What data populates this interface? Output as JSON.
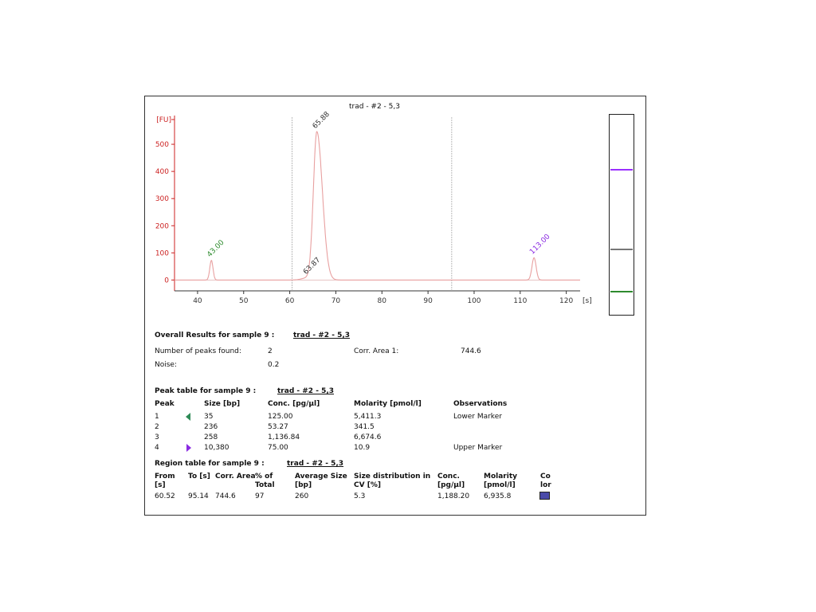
{
  "chart_data": {
    "type": "line",
    "title": "trad - #2 - 5,3",
    "ylabel": "[FU]",
    "xlabel": "[s]",
    "xlim": [
      35,
      123
    ],
    "ylim": [
      -40,
      600
    ],
    "xticks": [
      40,
      50,
      60,
      70,
      80,
      90,
      100,
      110,
      120
    ],
    "yticks": [
      0,
      100,
      200,
      300,
      400,
      500
    ],
    "region_lines_x": [
      60.52,
      95.14
    ],
    "peaks": [
      {
        "x": 43.0,
        "height": 72,
        "width": 0.35,
        "label": "43.00",
        "label_color": "#2e8b2e"
      },
      {
        "x": 63.87,
        "height": 8,
        "width": 1.2,
        "label": "63.87",
        "label_color": "#333333"
      },
      {
        "x": 65.88,
        "height": 545,
        "width": 0.75,
        "label": "65.88",
        "label_color": "#333333"
      },
      {
        "x": 113.0,
        "height": 82,
        "width": 0.45,
        "label": "113.00",
        "label_color": "#8a2be2"
      }
    ],
    "trace_color": "#e8a0a0",
    "axis_color": "#cc2222",
    "grid": false
  },
  "gel": {
    "bands": [
      {
        "position": 0.27,
        "color": "#9b30ff"
      },
      {
        "position": 0.67,
        "color": "#777777"
      },
      {
        "position": 0.88,
        "color": "#2e8b2e"
      }
    ]
  },
  "overall": {
    "heading": "Overall Results for sample 9  :",
    "sample_name": "trad - #2 - 5,3",
    "peaks_found_label": "Number of peaks found:",
    "peaks_found_value": "2",
    "corr_area_label": "Corr. Area 1:",
    "corr_area_value": "744.6",
    "noise_label": "Noise:",
    "noise_value": "0.2"
  },
  "peak_table": {
    "heading": "Peak table for sample 9  :",
    "sample_name": "trad - #2 - 5,3",
    "headers": [
      "Peak",
      "Size [bp]",
      "Conc. [pg/µl]",
      "Molarity [pmol/l]",
      "Observations"
    ],
    "rows": [
      {
        "peak": "1",
        "size": "35",
        "conc": "125.00",
        "molarity": "5,411.3",
        "obs": "Lower Marker",
        "marker": "lower"
      },
      {
        "peak": "2",
        "size": "236",
        "conc": "53.27",
        "molarity": "341.5",
        "obs": "",
        "marker": ""
      },
      {
        "peak": "3",
        "size": "258",
        "conc": "1,136.84",
        "molarity": "6,674.6",
        "obs": "",
        "marker": ""
      },
      {
        "peak": "4",
        "size": "10,380",
        "conc": "75.00",
        "molarity": "10.9",
        "obs": "Upper Marker",
        "marker": "upper"
      }
    ]
  },
  "region_table": {
    "heading": "Region table for sample 9  :",
    "sample_name": "trad - #2 - 5,3",
    "headers": {
      "from_1": "From",
      "from_2": "[s]",
      "to": "To [s]",
      "area": "Corr. Area",
      "pct_1": "% of",
      "pct_2": "Total",
      "avg_1": "Average Size",
      "avg_2": "[bp]",
      "dist_1": "Size distribution in",
      "dist_2": "CV [%]",
      "conc_1": "Conc.",
      "conc_2": "[pg/µl]",
      "mol_1": "Molarity",
      "mol_2": "[pmol/l]",
      "col_1": "Co",
      "col_2": "lor"
    },
    "row": {
      "from": "60.52",
      "to": "95.14",
      "area": "744.6",
      "pct": "97",
      "avg": "260",
      "dist": "5.3",
      "conc": "1,188.20",
      "mol": "6,935.8",
      "color": "#4a4aa8"
    }
  }
}
